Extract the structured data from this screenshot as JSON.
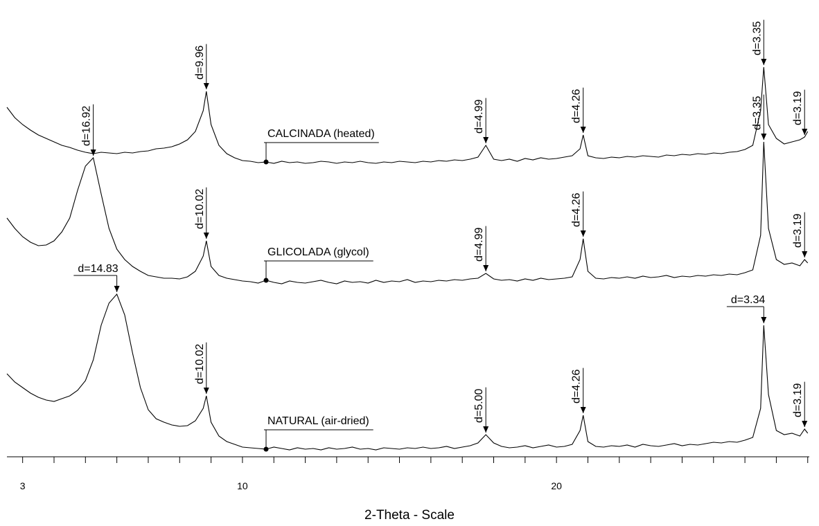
{
  "chart_data": {
    "type": "line",
    "x_label": "2-Theta - Scale",
    "xlim": [
      2.5,
      28.05
    ],
    "ylim": [
      0,
      660
    ],
    "xticks": [
      3,
      10,
      20
    ],
    "xminorticks": [
      4,
      5,
      6,
      7,
      8,
      9,
      11,
      12,
      13,
      14,
      15,
      16,
      17,
      18,
      19,
      21,
      22,
      23,
      24,
      25,
      26,
      27,
      28
    ],
    "x": [
      2.5,
      2.75,
      3,
      3.25,
      3.5,
      3.75,
      4,
      4.25,
      4.5,
      4.75,
      5,
      5.25,
      5.5,
      5.75,
      6,
      6.25,
      6.5,
      6.75,
      7,
      7.25,
      7.5,
      7.75,
      8,
      8.25,
      8.5,
      8.75,
      8.85,
      9,
      9.25,
      9.5,
      9.75,
      10,
      10.25,
      10.5,
      10.75,
      11,
      11.25,
      11.5,
      11.75,
      12,
      12.25,
      12.5,
      12.75,
      13,
      13.25,
      13.5,
      13.75,
      14,
      14.25,
      14.5,
      14.75,
      15,
      15.25,
      15.5,
      15.75,
      16,
      16.25,
      16.5,
      16.75,
      17,
      17.25,
      17.5,
      17.75,
      18,
      18.25,
      18.5,
      18.75,
      19,
      19.25,
      19.5,
      19.75,
      20,
      20.25,
      20.5,
      20.75,
      20.85,
      21,
      21.25,
      21.5,
      21.75,
      22,
      22.25,
      22.5,
      22.75,
      23,
      23.25,
      23.5,
      23.75,
      24,
      24.25,
      24.5,
      24.75,
      25,
      25.25,
      25.5,
      25.75,
      26,
      26.25,
      26.5,
      26.6,
      26.75,
      27,
      27.25,
      27.5,
      27.75,
      27.9,
      28
    ],
    "series": [
      {
        "name": "CALCINADA (heated)",
        "color": "#000000",
        "values": [
          505,
          490,
          480,
          472,
          465,
          460,
          455,
          450,
          447,
          443,
          440,
          438,
          440,
          439,
          438,
          440,
          439,
          441,
          442,
          445,
          446,
          448,
          452,
          458,
          470,
          500,
          528,
          480,
          450,
          438,
          432,
          428,
          427,
          425,
          426,
          424,
          427,
          425,
          426,
          424,
          425,
          427,
          426,
          424,
          426,
          425,
          427,
          425,
          424,
          426,
          425,
          427,
          426,
          425,
          427,
          426,
          428,
          427,
          429,
          428,
          430,
          433,
          450,
          430,
          428,
          430,
          427,
          431,
          429,
          432,
          430,
          431,
          433,
          435,
          445,
          465,
          435,
          432,
          431,
          433,
          432,
          434,
          433,
          435,
          434,
          433,
          436,
          435,
          437,
          436,
          438,
          437,
          439,
          438,
          440,
          441,
          444,
          450,
          500,
          563,
          480,
          460,
          452,
          455,
          458,
          462,
          470
        ],
        "peaks": [
          {
            "label": "d=9.96",
            "x": 8.85
          },
          {
            "label": "d=4.99",
            "x": 17.75
          },
          {
            "label": "d=4.26",
            "x": 20.85
          },
          {
            "label": "d=3.35",
            "x": 26.6
          },
          {
            "label": "d=3.19",
            "x": 27.9
          }
        ]
      },
      {
        "name": "GLICOLADA (glycol)",
        "color": "#000000",
        "values": [
          345,
          330,
          318,
          310,
          305,
          306,
          312,
          325,
          345,
          385,
          420,
          432,
          380,
          330,
          300,
          285,
          275,
          268,
          262,
          260,
          258,
          258,
          257,
          260,
          268,
          290,
          312,
          275,
          262,
          258,
          256,
          254,
          253,
          251,
          255,
          252,
          250,
          254,
          252,
          251,
          253,
          255,
          252,
          250,
          254,
          252,
          253,
          251,
          255,
          252,
          254,
          253,
          256,
          252,
          254,
          253,
          255,
          254,
          256,
          255,
          257,
          258,
          265,
          257,
          255,
          256,
          254,
          257,
          255,
          258,
          256,
          257,
          258,
          260,
          285,
          315,
          268,
          258,
          257,
          259,
          258,
          260,
          258,
          261,
          259,
          260,
          262,
          259,
          261,
          260,
          262,
          261,
          263,
          262,
          264,
          263,
          266,
          270,
          320,
          455,
          330,
          285,
          278,
          280,
          276,
          285,
          280
        ],
        "peaks": [
          {
            "label": "d=16.92",
            "x": 5.25
          },
          {
            "label": "d=10.02",
            "x": 8.85
          },
          {
            "label": "d=4.99",
            "x": 17.75
          },
          {
            "label": "d=4.26",
            "x": 20.85
          },
          {
            "label": "d=3.35",
            "x": 26.6
          },
          {
            "label": "d=3.19",
            "x": 27.9
          }
        ]
      },
      {
        "name": "NATURAL (air-dried)",
        "color": "#000000",
        "values": [
          120,
          108,
          100,
          92,
          86,
          82,
          80,
          84,
          88,
          96,
          110,
          140,
          190,
          222,
          235,
          205,
          150,
          100,
          68,
          55,
          50,
          46,
          44,
          45,
          52,
          70,
          88,
          50,
          30,
          22,
          18,
          14,
          13,
          12,
          11,
          14,
          12,
          10,
          13,
          11,
          12,
          10,
          13,
          11,
          12,
          14,
          11,
          12,
          10,
          13,
          12,
          11,
          13,
          12,
          14,
          12,
          13,
          15,
          12,
          14,
          16,
          20,
          32,
          20,
          15,
          13,
          14,
          16,
          13,
          15,
          17,
          14,
          15,
          18,
          38,
          60,
          22,
          15,
          14,
          16,
          15,
          17,
          14,
          18,
          16,
          15,
          17,
          19,
          16,
          18,
          17,
          19,
          21,
          20,
          22,
          21,
          24,
          28,
          70,
          190,
          90,
          38,
          32,
          34,
          30,
          40,
          34
        ],
        "peaks": [
          {
            "label": "d=14.83",
            "x": 6,
            "label_style": "horizontal"
          },
          {
            "label": "d=10.02",
            "x": 8.85
          },
          {
            "label": "d=5.00",
            "x": 17.75
          },
          {
            "label": "d=4.26",
            "x": 20.85
          },
          {
            "label": "d=3.34",
            "x": 26.6,
            "label_style": "horizontal"
          },
          {
            "label": "d=3.19",
            "x": 27.9
          }
        ]
      }
    ]
  }
}
